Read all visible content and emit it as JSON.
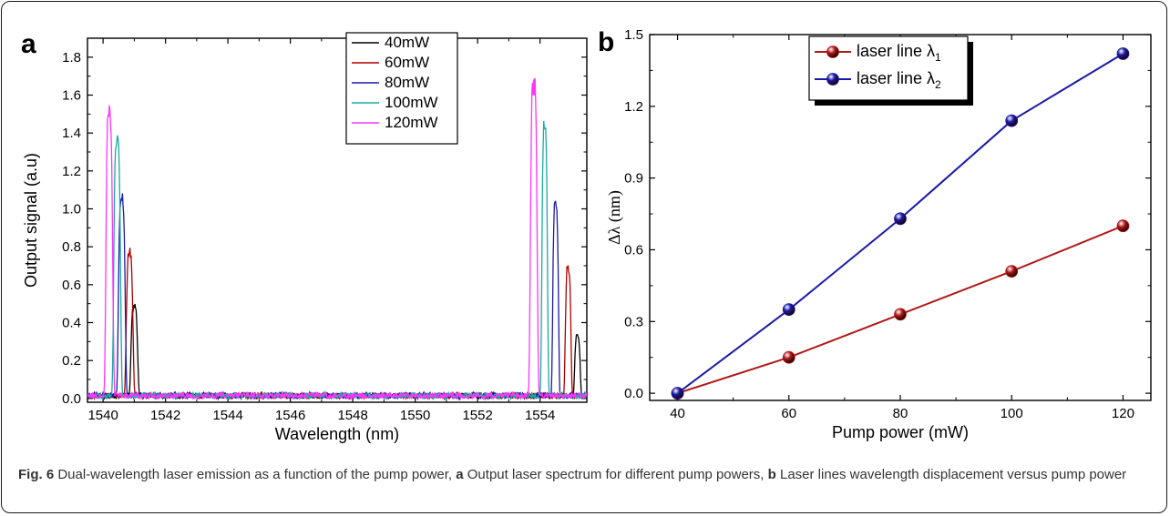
{
  "chart_data": [
    {
      "panel_label": "a",
      "type": "line",
      "xlabel": "Wavelength (nm)",
      "ylabel": "Output signal (a.u)",
      "xlim": [
        1539.5,
        1555.5
      ],
      "ylim": [
        -0.02,
        1.9
      ],
      "x_ticks": [
        1540,
        1542,
        1544,
        1546,
        1548,
        1550,
        1552,
        1554
      ],
      "y_ticks": [
        0.0,
        0.2,
        0.4,
        0.6,
        0.8,
        1.0,
        1.2,
        1.4,
        1.6,
        1.8
      ],
      "grid": false,
      "legend_position": "top-center",
      "series": [
        {
          "name": "40mW",
          "color": "#000000",
          "peaks": [
            {
              "x": 1541.0,
              "y": 0.5,
              "width": 0.12
            },
            {
              "x": 1555.2,
              "y": 0.34,
              "width": 0.1
            }
          ]
        },
        {
          "name": "60mW",
          "color": "#b00000",
          "peaks": [
            {
              "x": 1540.85,
              "y": 0.8,
              "width": 0.12
            },
            {
              "x": 1554.9,
              "y": 0.71,
              "width": 0.1
            }
          ]
        },
        {
          "name": "80mW",
          "color": "#1a1aa8",
          "peaks": [
            {
              "x": 1540.6,
              "y": 1.12,
              "width": 0.12
            },
            {
              "x": 1554.5,
              "y": 1.09,
              "width": 0.1
            }
          ]
        },
        {
          "name": "100mW",
          "color": "#1aaaa0",
          "peaks": [
            {
              "x": 1540.45,
              "y": 1.42,
              "width": 0.12
            },
            {
              "x": 1554.15,
              "y": 1.48,
              "width": 0.1
            }
          ]
        },
        {
          "name": "120mW",
          "color": "#ff33ff",
          "peaks": [
            {
              "x": 1540.2,
              "y": 1.56,
              "width": 0.12
            },
            {
              "x": 1553.8,
              "y": 1.73,
              "width": 0.12
            }
          ]
        }
      ],
      "noise_floor": 0.03
    },
    {
      "panel_label": "b",
      "type": "line",
      "xlabel": "Pump power (mW)",
      "ylabel": "Δλ (nm)",
      "xlim": [
        35,
        125
      ],
      "ylim": [
        -0.03,
        1.5
      ],
      "x_ticks": [
        40,
        60,
        80,
        100,
        120
      ],
      "y_ticks": [
        0.0,
        0.3,
        0.6,
        0.9,
        1.2,
        1.5
      ],
      "grid": false,
      "legend_position": "top-left",
      "x": [
        40,
        60,
        80,
        100,
        120
      ],
      "series": [
        {
          "name": "laser line λ",
          "subscript": "1",
          "color": "#b01818",
          "values": [
            0.0,
            0.15,
            0.33,
            0.51,
            0.7
          ]
        },
        {
          "name": "laser line λ",
          "subscript": "2",
          "color": "#1a1aa8",
          "values": [
            0.0,
            0.35,
            0.73,
            1.14,
            1.42
          ]
        }
      ]
    }
  ],
  "caption": {
    "fig_label": "Fig. 6",
    "text_1": " Dual-wavelength laser emission as a function of the pump power, ",
    "ref_a": "a",
    "text_2": " Output laser spectrum for different pump powers, ",
    "ref_b": "b",
    "text_3": " Laser lines wavelength displacement versus pump power"
  }
}
